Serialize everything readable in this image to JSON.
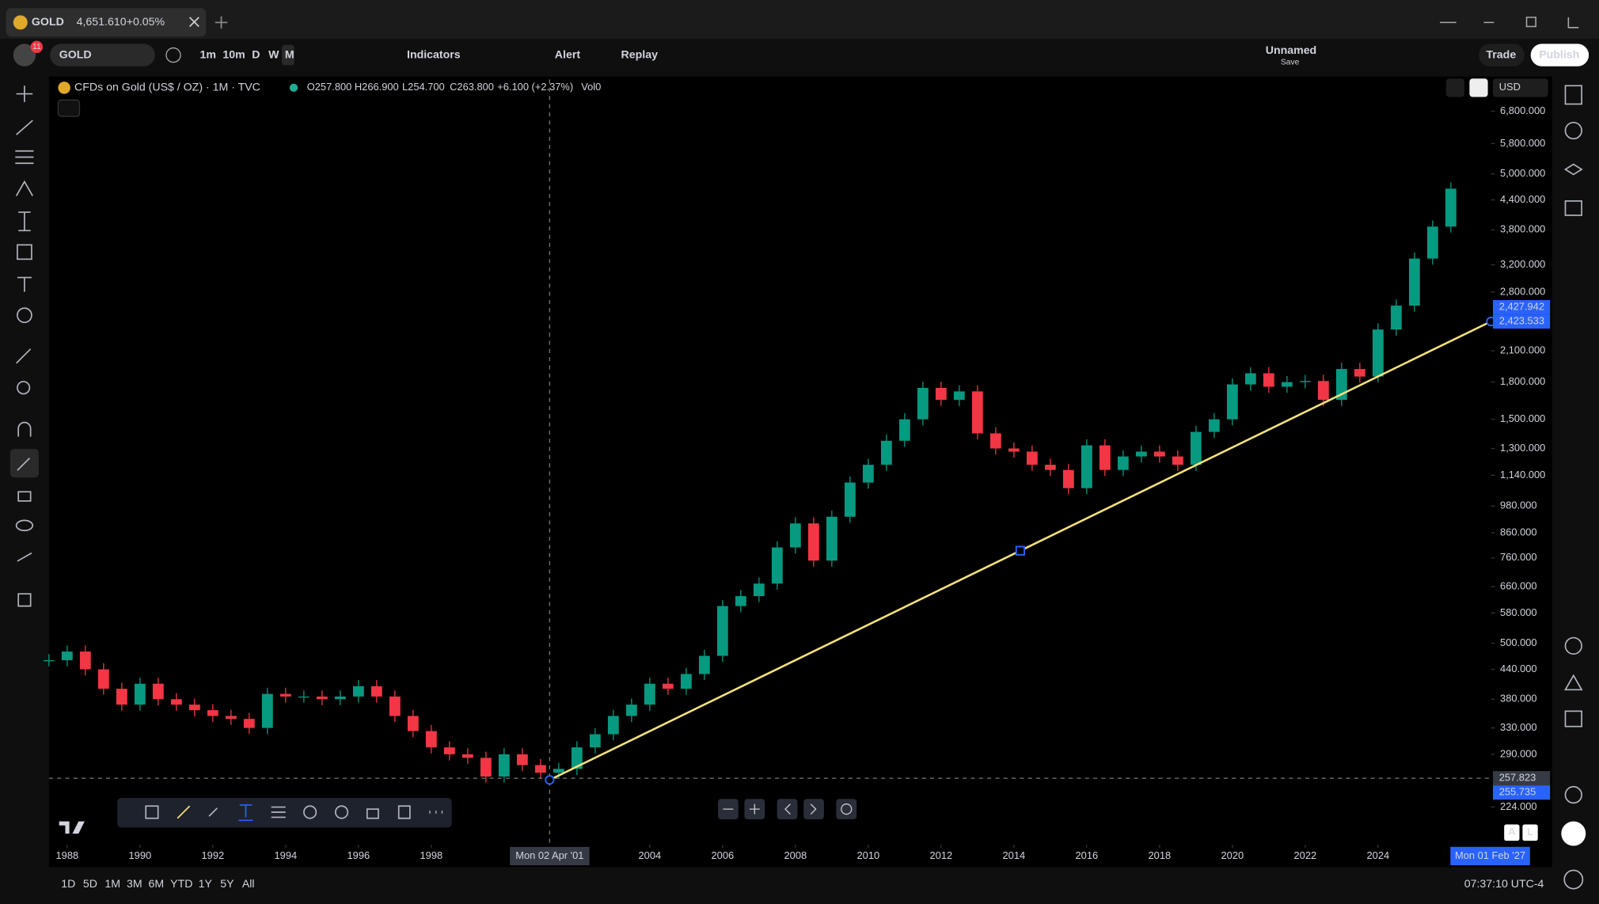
{
  "ui": {
    "tab": {
      "symbol": "GOLD",
      "price": "4,651.610",
      "change": "+0.05%"
    },
    "toolbar": {
      "symbol": "GOLD",
      "badge": "11",
      "intervals": [
        "1m",
        "10m",
        "D",
        "W",
        "M"
      ],
      "indicators": "Indicators",
      "alert": "Alert",
      "replay": "Replay",
      "layout": "Unnamed",
      "save": "Save",
      "trade": "Trade",
      "publish": "Publish"
    },
    "legend": {
      "title": "CFDs on Gold (US$ / OZ) · 1M · TVC",
      "open": "O257.800",
      "high": "H266.900",
      "low": "L254.700",
      "close": "C263.800",
      "change": "+6.100 (+2.37%)",
      "volume": "Vol0"
    },
    "currency": "USD",
    "ranges": [
      "1D",
      "5D",
      "1M",
      "3M",
      "6M",
      "YTD",
      "1Y",
      "5Y",
      "All"
    ],
    "clock": "07:37:10 UTC-4",
    "scale_modes": [
      "A",
      "L"
    ]
  },
  "chart_data": {
    "type": "candlestick",
    "x": [
      1987.5,
      1988,
      1988.5,
      1989,
      1989.5,
      1990,
      1990.5,
      1991,
      1991.5,
      1992,
      1992.5,
      1993,
      1993.5,
      1994,
      1994.5,
      1995,
      1995.5,
      1996,
      1996.5,
      1997,
      1997.5,
      1998,
      1998.5,
      1999,
      1999.5,
      2000,
      2000.5,
      2001,
      2001.5,
      2002,
      2002.5,
      2003,
      2003.5,
      2004,
      2004.5,
      2005,
      2005.5,
      2006,
      2006.5,
      2007,
      2007.5,
      2008,
      2008.5,
      2009,
      2009.5,
      2010,
      2010.5,
      2011,
      2011.5,
      2012,
      2012.5,
      2013,
      2013.5,
      2014,
      2014.5,
      2015,
      2015.5,
      2016,
      2016.5,
      2017,
      2017.5,
      2018,
      2018.5,
      2019,
      2019.5,
      2020,
      2020.5,
      2021,
      2021.5,
      2022,
      2022.5,
      2023,
      2023.5,
      2024,
      2024.5,
      2025,
      2025.5,
      2026
    ],
    "values": [
      460,
      480,
      440,
      400,
      370,
      410,
      380,
      370,
      360,
      350,
      345,
      330,
      390,
      385,
      385,
      380,
      385,
      405,
      385,
      350,
      325,
      300,
      290,
      285,
      260,
      290,
      275,
      265,
      270,
      300,
      320,
      350,
      370,
      410,
      400,
      430,
      470,
      600,
      630,
      670,
      800,
      900,
      750,
      930,
      1100,
      1200,
      1350,
      1500,
      1750,
      1650,
      1720,
      1400,
      1300,
      1280,
      1200,
      1170,
      1070,
      1320,
      1170,
      1250,
      1280,
      1250,
      1200,
      1410,
      1500,
      1780,
      1880,
      1760,
      1800,
      1810,
      1650,
      1920,
      1850,
      2330,
      2620,
      3300,
      3860,
      4650
    ],
    "up_color": "#089981",
    "down_color": "#f23645",
    "xlim": [
      1987.5,
      2027.1
    ],
    "ylim": [
      186,
      7940
    ],
    "log_scale": true,
    "xticks": [
      1988,
      1990,
      1992,
      1994,
      1996,
      1998,
      2004,
      2006,
      2008,
      2010,
      2012,
      2014,
      2016,
      2018,
      2020,
      2022,
      2024
    ],
    "yticks": [
      {
        "value": 6800,
        "label": "6,800.000"
      },
      {
        "value": 5800,
        "label": "5,800.000"
      },
      {
        "value": 5000,
        "label": "5,000.000"
      },
      {
        "value": 4400,
        "label": "4,400.000"
      },
      {
        "value": 3800,
        "label": "3,800.000"
      },
      {
        "value": 3200,
        "label": "3,200.000"
      },
      {
        "value": 2800,
        "label": "2,800.000"
      },
      {
        "value": 2100,
        "label": "2,100.000"
      },
      {
        "value": 1800,
        "label": "1,800.000"
      },
      {
        "value": 1500,
        "label": "1,500.000"
      },
      {
        "value": 1300,
        "label": "1,300.000"
      },
      {
        "value": 1140,
        "label": "1,140.000"
      },
      {
        "value": 980,
        "label": "980.000"
      },
      {
        "value": 860,
        "label": "860.000"
      },
      {
        "value": 760,
        "label": "760.000"
      },
      {
        "value": 660,
        "label": "660.000"
      },
      {
        "value": 580,
        "label": "580.000"
      },
      {
        "value": 500,
        "label": "500.000"
      },
      {
        "value": 440,
        "label": "440.000"
      },
      {
        "value": 380,
        "label": "380.000"
      },
      {
        "value": 330,
        "label": "330.000"
      },
      {
        "value": 290,
        "label": "290.000"
      },
      {
        "value": 224,
        "label": "224.000"
      }
    ],
    "crosshair": {
      "x": 2001.25,
      "label": "Mon 02 Apr '01",
      "price": 257.823
    },
    "cursor": {
      "x": 2027.08,
      "label": "Mon 01 Feb '27"
    },
    "trendline": {
      "x": [
        2001.25,
        2027.1
      ],
      "values": [
        255.735,
        2423.533
      ],
      "color": "#f5e27a"
    },
    "price_badges": [
      {
        "value": 2423.533,
        "label": "2,423.533"
      },
      {
        "value": 2427.942,
        "label": "2,427.942"
      },
      {
        "value": 257.823,
        "label": "257.823"
      },
      {
        "value": 255.735,
        "label": "255.735"
      }
    ]
  }
}
